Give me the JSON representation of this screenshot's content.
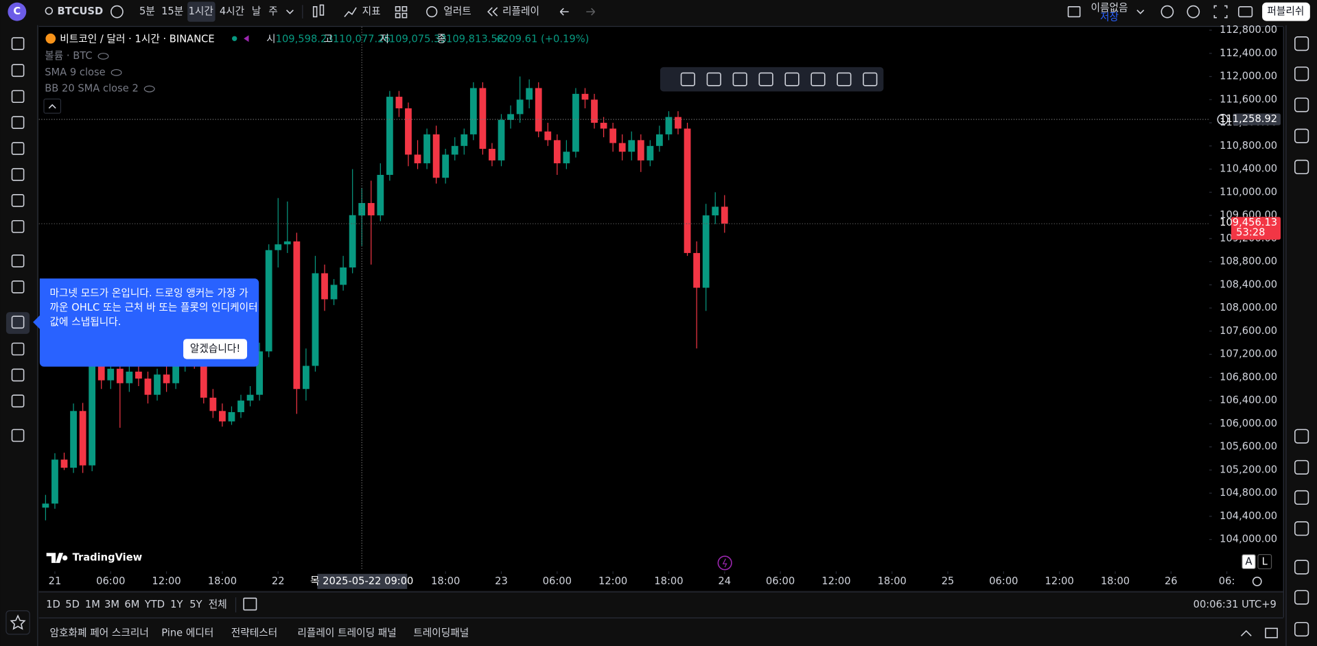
{
  "top_bar": {
    "symbol": "BTCUSD",
    "intervals": [
      "5분",
      "15분",
      "1시간",
      "4시간",
      "날",
      "주"
    ],
    "indicators": "지표",
    "alert": "얼러트",
    "replay": "리플레이",
    "layout_name": "이름없음",
    "layout_status": "저장",
    "publish": "퍼블리쉬"
  },
  "chart_data": {
    "type": "candlestick",
    "title": "비트코인 / 달러 · 1시간 · BINANCE",
    "legend": [
      {
        "label": "시",
        "value": "109,598.23"
      },
      {
        "label": "고",
        "value": "110,077.26"
      },
      {
        "label": "저",
        "value": "109,075.33"
      },
      {
        "label": "종",
        "value": "109,813.58"
      }
    ],
    "change": "+209.61 (+0.19%)",
    "studies": [
      "볼륨 · BTC",
      "SMA 9 close",
      "BB 20 SMA close 2"
    ],
    "up_color": "#089981",
    "down_color": "#f23645",
    "x": [
      "2025-05-20 23:00",
      "2025-05-21 00:00",
      "2025-05-21 01:00",
      "2025-05-21 02:00",
      "2025-05-21 03:00",
      "2025-05-21 04:00",
      "2025-05-21 05:00",
      "2025-05-21 06:00",
      "2025-05-21 07:00",
      "2025-05-21 08:00",
      "2025-05-21 09:00",
      "2025-05-21 10:00",
      "2025-05-21 11:00",
      "2025-05-21 12:00",
      "2025-05-21 13:00",
      "2025-05-21 14:00",
      "2025-05-21 15:00",
      "2025-05-21 16:00",
      "2025-05-21 17:00",
      "2025-05-21 18:00",
      "2025-05-21 19:00",
      "2025-05-21 20:00",
      "2025-05-21 21:00",
      "2025-05-21 22:00",
      "2025-05-21 23:00",
      "2025-05-22 00:00",
      "2025-05-22 01:00",
      "2025-05-22 02:00",
      "2025-05-22 03:00",
      "2025-05-22 04:00",
      "2025-05-22 05:00",
      "2025-05-22 06:00",
      "2025-05-22 07:00",
      "2025-05-22 08:00",
      "2025-05-22 09:00",
      "2025-05-22 10:00",
      "2025-05-22 11:00",
      "2025-05-22 12:00",
      "2025-05-22 13:00",
      "2025-05-22 14:00",
      "2025-05-22 15:00",
      "2025-05-22 16:00",
      "2025-05-22 17:00",
      "2025-05-22 18:00",
      "2025-05-22 19:00",
      "2025-05-22 20:00",
      "2025-05-22 21:00",
      "2025-05-22 22:00",
      "2025-05-22 23:00",
      "2025-05-23 00:00",
      "2025-05-23 01:00",
      "2025-05-23 02:00",
      "2025-05-23 03:00",
      "2025-05-23 04:00",
      "2025-05-23 05:00",
      "2025-05-23 06:00",
      "2025-05-23 07:00",
      "2025-05-23 08:00",
      "2025-05-23 09:00",
      "2025-05-23 10:00",
      "2025-05-23 11:00",
      "2025-05-23 12:00",
      "2025-05-23 13:00",
      "2025-05-23 14:00",
      "2025-05-23 15:00",
      "2025-05-23 16:00",
      "2025-05-23 17:00",
      "2025-05-23 18:00",
      "2025-05-23 19:00",
      "2025-05-23 20:00",
      "2025-05-23 21:00",
      "2025-05-23 22:00",
      "2025-05-23 23:00",
      "2025-05-24 00:00"
    ],
    "open": [
      104550,
      104620,
      105380,
      105240,
      106220,
      105280,
      107000,
      106750,
      106950,
      106700,
      106900,
      106780,
      106500,
      106850,
      106700,
      107000,
      107150,
      107000,
      106450,
      106220,
      106040,
      106200,
      106400,
      106500,
      107250,
      109000,
      109100,
      109150,
      106600,
      107000,
      108600,
      108150,
      108400,
      108700,
      109598.23,
      109813.58,
      109600,
      110300,
      111650,
      111450,
      110650,
      110500,
      111000,
      110250,
      110650,
      110800,
      111000,
      111800,
      110750,
      110550,
      111250,
      111350,
      111600,
      111800,
      111050,
      110900,
      110500,
      110700,
      111700,
      111600,
      111200,
      111100,
      110850,
      110700,
      110900,
      110550,
      110800,
      111000,
      111300,
      111100,
      108950,
      108350,
      109600,
      109750
    ],
    "high": [
      104770,
      105490,
      105500,
      106350,
      106360,
      107250,
      107150,
      107050,
      107050,
      107000,
      107100,
      106900,
      106950,
      107000,
      107100,
      107300,
      107350,
      107150,
      106600,
      106350,
      106300,
      106500,
      106650,
      107400,
      109100,
      109900,
      109840,
      109300,
      107300,
      108900,
      108750,
      108500,
      108900,
      110400,
      110077.26,
      110200,
      110500,
      111750,
      111750,
      111550,
      110900,
      111100,
      111150,
      110750,
      110950,
      111100,
      111900,
      111900,
      110850,
      111350,
      111500,
      112000,
      111950,
      111900,
      111200,
      111000,
      110900,
      111800,
      111800,
      111700,
      111300,
      111200,
      111000,
      111050,
      111000,
      110900,
      111150,
      111400,
      111400,
      111200,
      109150,
      109800,
      110000,
      109950
    ],
    "low": [
      104330,
      104530,
      105200,
      105150,
      105150,
      105180,
      106600,
      106600,
      105930,
      106550,
      106650,
      106350,
      106400,
      106550,
      106600,
      106900,
      106950,
      106350,
      106100,
      105950,
      105980,
      106100,
      106300,
      106400,
      107150,
      108700,
      108950,
      106170,
      106400,
      106900,
      107950,
      108050,
      108300,
      108600,
      109075.33,
      108750,
      109500,
      110200,
      111300,
      110450,
      110400,
      110400,
      110150,
      110150,
      110550,
      110650,
      110900,
      110650,
      110450,
      110450,
      111100,
      111200,
      111450,
      110950,
      110800,
      110300,
      110400,
      110600,
      111450,
      111100,
      110950,
      110700,
      110550,
      110550,
      110350,
      110450,
      110700,
      110900,
      111000,
      108900,
      107300,
      107950,
      109450,
      109300
    ],
    "close": [
      104620,
      105380,
      105240,
      106220,
      105280,
      107000,
      106750,
      106950,
      106700,
      106900,
      106780,
      106500,
      106850,
      106700,
      107000,
      107150,
      107000,
      106450,
      106220,
      106040,
      106200,
      106400,
      106500,
      107250,
      109000,
      109100,
      109150,
      106600,
      107000,
      108600,
      108150,
      108400,
      108700,
      109603.97,
      109813.58,
      109600,
      110300,
      111650,
      111450,
      110650,
      110500,
      111000,
      110250,
      110650,
      110800,
      111000,
      111800,
      110750,
      110550,
      111250,
      111350,
      111600,
      111800,
      111050,
      110900,
      110500,
      110700,
      111700,
      111600,
      111200,
      111100,
      110850,
      110700,
      110900,
      110550,
      110800,
      111000,
      111300,
      111100,
      108950,
      108350,
      109600,
      109750,
      109456.13
    ],
    "xlim": [
      "2025-05-20 22:00",
      "2025-05-26 07:00"
    ],
    "xticks": [
      {
        "value": "2025-05-21 00:00",
        "label": "21"
      },
      {
        "value": "2025-05-21 06:00",
        "label": "06:00"
      },
      {
        "value": "2025-05-21 12:00",
        "label": "12:00"
      },
      {
        "value": "2025-05-21 18:00",
        "label": "18:00"
      },
      {
        "value": "2025-05-22 00:00",
        "label": "22"
      },
      {
        "value": "2025-05-22 18:00",
        "label": "18:00"
      },
      {
        "value": "2025-05-23 00:00",
        "label": "23"
      },
      {
        "value": "2025-05-23 06:00",
        "label": "06:00"
      },
      {
        "value": "2025-05-23 12:00",
        "label": "12:00"
      },
      {
        "value": "2025-05-23 18:00",
        "label": "18:00"
      },
      {
        "value": "2025-05-24 00:00",
        "label": "24"
      },
      {
        "value": "2025-05-24 06:00",
        "label": "06:00"
      },
      {
        "value": "2025-05-24 12:00",
        "label": "12:00"
      },
      {
        "value": "2025-05-24 18:00",
        "label": "18:00"
      },
      {
        "value": "2025-05-25 00:00",
        "label": "25"
      },
      {
        "value": "2025-05-25 06:00",
        "label": "06:00"
      },
      {
        "value": "2025-05-25 12:00",
        "label": "12:00"
      },
      {
        "value": "2025-05-25 18:00",
        "label": "18:00"
      },
      {
        "value": "2025-05-26 00:00",
        "label": "26"
      },
      {
        "value": "2025-05-26 06:00",
        "label": "06:"
      }
    ],
    "ylim": [
      103400,
      113000
    ],
    "yticks": [
      {
        "value": 104000,
        "label": "104,000.00"
      },
      {
        "value": 104400,
        "label": "104,400.00"
      },
      {
        "value": 104800,
        "label": "104,800.00"
      },
      {
        "value": 105200,
        "label": "105,200.00"
      },
      {
        "value": 105600,
        "label": "105,600.00"
      },
      {
        "value": 106000,
        "label": "106,000.00"
      },
      {
        "value": 106400,
        "label": "106,400.00"
      },
      {
        "value": 106800,
        "label": "106,800.00"
      },
      {
        "value": 107200,
        "label": "107,200.00"
      },
      {
        "value": 107600,
        "label": "107,600.00"
      },
      {
        "value": 108000,
        "label": "108,000.00"
      },
      {
        "value": 108400,
        "label": "108,400.00"
      },
      {
        "value": 108800,
        "label": "108,800.00"
      },
      {
        "value": 109200,
        "label": "109,200.00"
      },
      {
        "value": 109600,
        "label": "109,600.00"
      },
      {
        "value": 110000,
        "label": "110,000.00"
      },
      {
        "value": 110400,
        "label": "110,400.00"
      },
      {
        "value": 110800,
        "label": "110,800.00"
      },
      {
        "value": 111200,
        "label": "111,200.00"
      },
      {
        "value": 111600,
        "label": "111,600.00"
      },
      {
        "value": 112000,
        "label": "112,000.00"
      },
      {
        "value": 112400,
        "label": "112,400.00"
      },
      {
        "value": 112800,
        "label": "112,800.00"
      }
    ],
    "last_price": {
      "value": 109456.13,
      "label": "109,456.13"
    },
    "countdown": "53:28",
    "crosshair": {
      "price": {
        "value": 111258.92,
        "label": "111,258.92"
      },
      "time": {
        "value": "2025-05-22 09:00",
        "label": "목 2025-05-22  09:00"
      }
    },
    "scale_buttons": [
      "A",
      "L"
    ],
    "watermark": "TradingView"
  },
  "tooltip": {
    "lines": [
      "마그넷 모드가 온입니다. 드로잉 앵커는 가장 가",
      "까운 OHLC 또는 근처 바 또는 플롯의 인디케이터",
      "값에 스냅됩니다."
    ],
    "button": "알겠습니다!"
  },
  "range_bar": {
    "ranges": [
      "1D",
      "5D",
      "1M",
      "3M",
      "6M",
      "YTD",
      "1Y",
      "5Y",
      "전체"
    ],
    "clock": "00:06:31 UTC+9"
  },
  "bottom_tabs": [
    "암호화폐 페어 스크리너",
    "Pine 에디터",
    "전략테스터",
    "리플레이 트레이딩 패널",
    "트레이딩패널"
  ]
}
